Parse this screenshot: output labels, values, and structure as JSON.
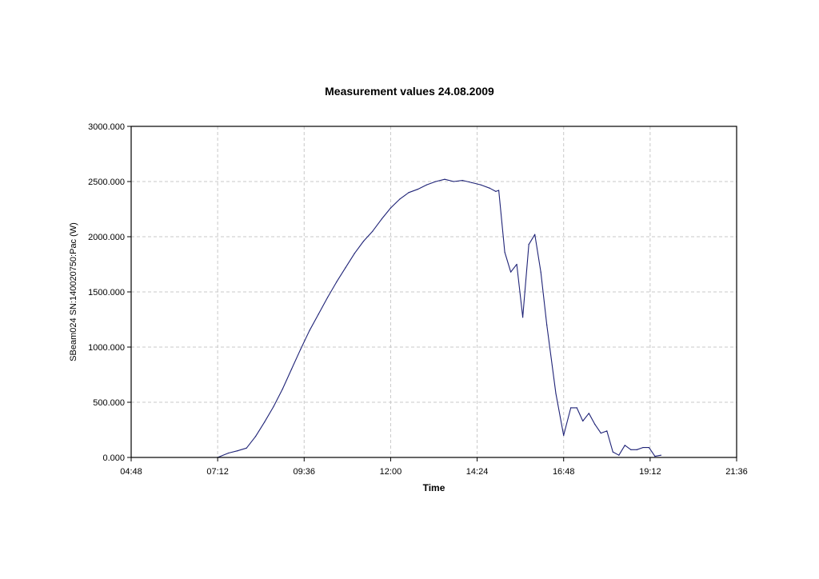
{
  "chart_data": {
    "type": "line",
    "title": "Measurement values 24.08.2009",
    "xlabel": "Time",
    "ylabel": "SBeam024 SN:140020750:Pac (W)",
    "xlim": [
      "04:48",
      "21:36"
    ],
    "ylim": [
      0,
      3000
    ],
    "x_ticks": [
      "04:48",
      "07:12",
      "09:36",
      "12:00",
      "14:24",
      "16:48",
      "19:12",
      "21:36"
    ],
    "y_ticks": [
      "0.000",
      "500.000",
      "1000.000",
      "1500.000",
      "2000.000",
      "2500.000",
      "3000.000"
    ],
    "grid": true,
    "legend": "none",
    "colors": {
      "line": "#1f2377",
      "grid": "#c8c8c8",
      "axis": "#000000"
    },
    "series": [
      {
        "x": [
          "07:12",
          "07:30",
          "07:45",
          "08:00",
          "08:15",
          "08:30",
          "08:45",
          "09:00",
          "09:15",
          "09:30",
          "09:45",
          "10:00",
          "10:15",
          "10:30",
          "10:45",
          "11:00",
          "11:15",
          "11:30",
          "11:45",
          "12:00",
          "12:15",
          "12:30",
          "12:45",
          "13:00",
          "13:15",
          "13:30",
          "13:45",
          "14:00",
          "14:15",
          "14:30",
          "14:45",
          "14:55",
          "15:00",
          "15:10",
          "15:20",
          "15:30",
          "15:40",
          "15:50",
          "16:00",
          "16:10",
          "16:20",
          "16:35",
          "16:48",
          "17:00",
          "17:10",
          "17:20",
          "17:30",
          "17:40",
          "17:50",
          "18:00",
          "18:10",
          "18:20",
          "18:30",
          "18:40",
          "18:50",
          "19:00",
          "19:10",
          "19:20",
          "19:30"
        ],
        "values": [
          0,
          40,
          60,
          85,
          190,
          320,
          460,
          620,
          800,
          980,
          1150,
          1300,
          1450,
          1590,
          1720,
          1850,
          1960,
          2050,
          2160,
          2260,
          2340,
          2400,
          2430,
          2470,
          2500,
          2520,
          2500,
          2510,
          2490,
          2470,
          2440,
          2410,
          2420,
          1860,
          1680,
          1750,
          1270,
          1930,
          2020,
          1680,
          1200,
          580,
          200,
          450,
          450,
          330,
          400,
          300,
          220,
          240,
          50,
          20,
          110,
          70,
          70,
          90,
          90,
          10,
          20
        ]
      }
    ]
  }
}
